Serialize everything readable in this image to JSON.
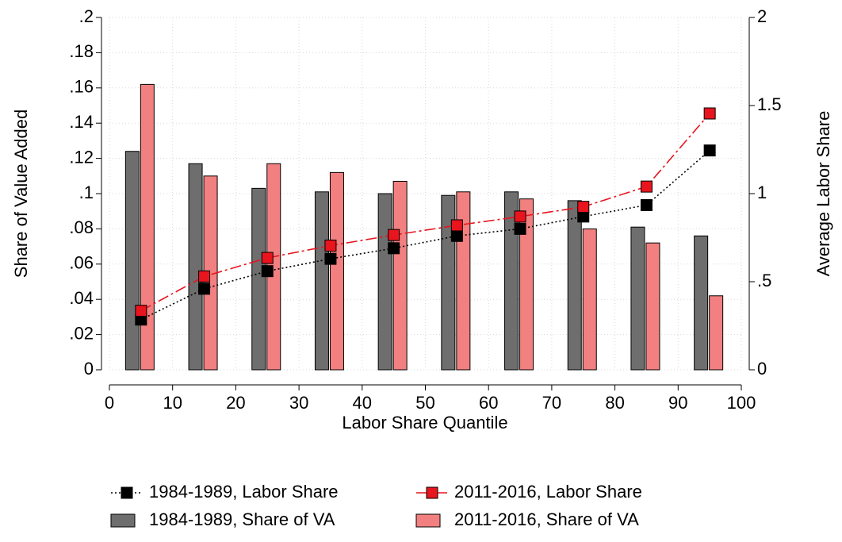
{
  "chart_data": {
    "type": "bar",
    "x_label": "Labor Share Quantile",
    "y_label": "Share of Value Added",
    "y2_label": "Average Labor Share",
    "x": [
      5,
      15,
      25,
      35,
      45,
      55,
      65,
      75,
      85,
      95
    ],
    "xlim": [
      0,
      100
    ],
    "xticks": [
      0,
      10,
      20,
      30,
      40,
      50,
      60,
      70,
      80,
      90,
      100
    ],
    "ylim": [
      0,
      0.2
    ],
    "yticks": [
      0,
      {
        "value": 0.02,
        "label": ".02"
      },
      {
        "value": 0.04,
        "label": ".04"
      },
      {
        "value": 0.06,
        "label": ".06"
      },
      {
        "value": 0.08,
        "label": ".08"
      },
      {
        "value": 0.1,
        "label": ".1"
      },
      {
        "value": 0.12,
        "label": ".12"
      },
      {
        "value": 0.14,
        "label": ".14"
      },
      {
        "value": 0.16,
        "label": ".16"
      },
      {
        "value": 0.18,
        "label": ".18"
      },
      {
        "value": 0.2,
        "label": ".2"
      }
    ],
    "y2lim": [
      0,
      2
    ],
    "y2ticks": [
      0,
      {
        "value": 0.5,
        "label": ".5"
      },
      1,
      1.5,
      2
    ],
    "grid": true,
    "series": [
      {
        "name": "1984-1989, Labor Share",
        "type": "line",
        "axis": "y2",
        "color": "#000000",
        "line_style": "dotted",
        "values": [
          0.285,
          0.46,
          0.56,
          0.63,
          0.69,
          0.76,
          0.8,
          0.87,
          0.935,
          1.245
        ]
      },
      {
        "name": "2011-2016, Labor Share",
        "type": "line",
        "axis": "y2",
        "color": "#e8141e",
        "line_style": "dashdot",
        "values": [
          0.335,
          0.53,
          0.635,
          0.705,
          0.765,
          0.82,
          0.87,
          0.925,
          1.04,
          1.455
        ]
      },
      {
        "name": "1984-1989, Share of VA",
        "type": "bar",
        "color": "#6e6e6e",
        "values": [
          0.124,
          0.117,
          0.103,
          0.101,
          0.1,
          0.099,
          0.101,
          0.096,
          0.081,
          0.076
        ]
      },
      {
        "name": "2011-2016, Share of VA",
        "type": "bar",
        "color": "#f28080",
        "values": [
          0.162,
          0.11,
          0.117,
          0.112,
          0.107,
          0.101,
          0.097,
          0.08,
          0.072,
          0.042
        ]
      }
    ]
  }
}
